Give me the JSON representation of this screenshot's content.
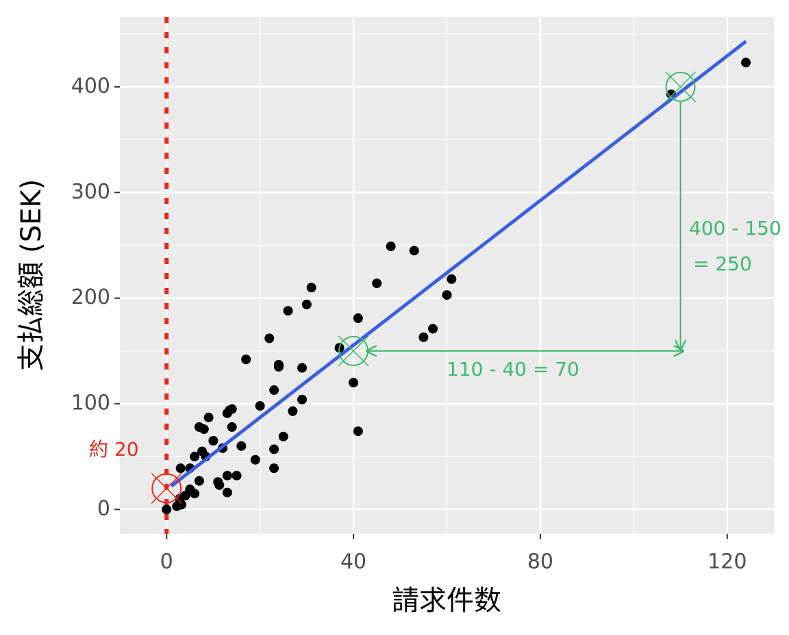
{
  "chart_data": {
    "type": "scatter",
    "x_label": "請求件数",
    "y_label": "支払総額 (SEK)",
    "xlim": [
      -10,
      130
    ],
    "xticks": [
      0,
      40,
      80,
      120
    ],
    "x_minor_ticks": [
      20,
      60,
      100
    ],
    "ylim": [
      -23,
      466
    ],
    "yticks": [
      0,
      100,
      200,
      300,
      400
    ],
    "y_minor_ticks": [
      50,
      150,
      250,
      350,
      450
    ],
    "grid": true,
    "series": [
      {
        "color": "#000000",
        "x": [
          0,
          2.2,
          3.2,
          2.8,
          4,
          5,
          6,
          3,
          5,
          7,
          6,
          7.6,
          8.4,
          7,
          8,
          9,
          10,
          11.3,
          11,
          12,
          13,
          13,
          13,
          13.5,
          14,
          14,
          15,
          16,
          17,
          19,
          20,
          22,
          23,
          23,
          23,
          24,
          24,
          25,
          26,
          27,
          29,
          29,
          30,
          31,
          37,
          40,
          41,
          41,
          45,
          48,
          53,
          55,
          57,
          60,
          61,
          108,
          124
        ],
        "values": [
          0,
          3,
          4.5,
          10,
          13,
          19,
          15,
          39,
          39,
          27,
          50,
          55,
          50,
          78,
          76,
          87,
          65,
          23,
          26,
          58,
          32,
          16,
          91,
          94,
          95,
          78,
          32,
          60,
          142,
          47,
          98,
          162,
          39,
          57,
          113,
          137,
          135,
          69,
          188,
          93,
          104,
          134,
          194,
          210,
          153,
          120,
          181,
          74,
          214,
          249,
          245,
          163,
          171,
          203,
          218,
          393,
          423
        ]
      }
    ],
    "fit_line": {
      "color": "#3b5fe0",
      "x": [
        1,
        124
      ],
      "values": [
        22,
        443
      ]
    },
    "vline": {
      "x": 0,
      "color": "#e8281a"
    },
    "highlights": [
      {
        "x": 0,
        "y": 20,
        "color": "#e8281a"
      },
      {
        "x": 40,
        "y": 150,
        "color": "#3cba6b"
      },
      {
        "x": 110,
        "y": 400,
        "color": "#3cba6b"
      }
    ],
    "annotations": [
      {
        "text": "約 20",
        "color": "#e8281a"
      },
      {
        "text": "110 - 40 = 70",
        "color": "#3cba6b"
      },
      {
        "text": "400 - 150",
        "color": "#3cba6b"
      },
      {
        "text": "= 250",
        "color": "#3cba6b"
      }
    ]
  }
}
